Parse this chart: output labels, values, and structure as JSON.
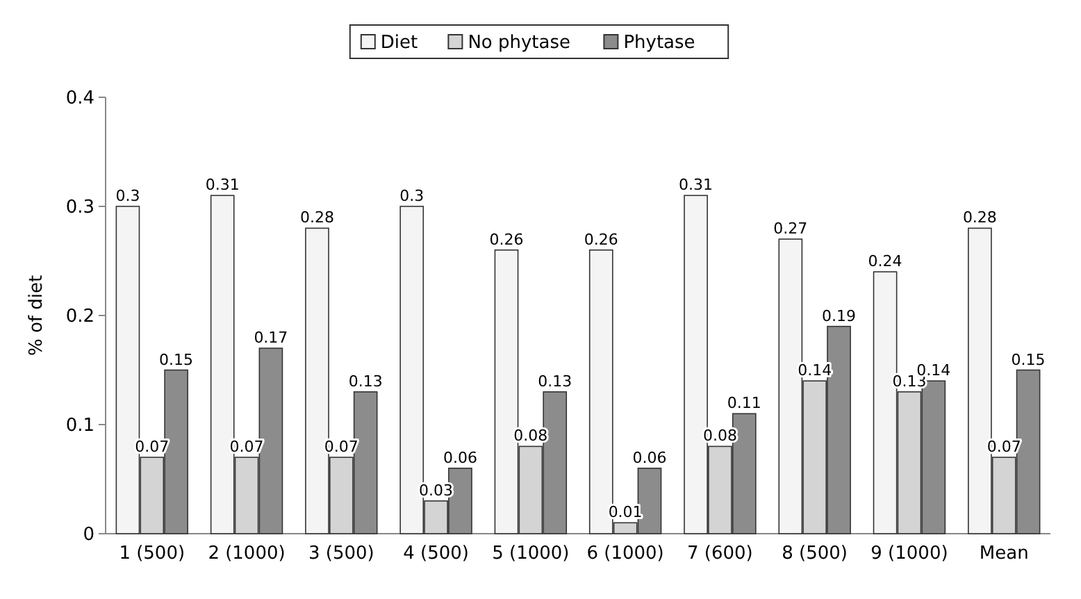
{
  "chart_data": {
    "type": "bar",
    "ylabel": "% of diet",
    "categories": [
      "1 (500)",
      "2 (1000)",
      "3 (500)",
      "4 (500)",
      "5 (1000)",
      "6 (1000)",
      "7 (600)",
      "8 (500)",
      "9 (1000)",
      "Mean"
    ],
    "series": [
      {
        "name": "Diet",
        "color": "#f4f4f4",
        "values": [
          0.3,
          0.31,
          0.28,
          0.3,
          0.26,
          0.26,
          0.31,
          0.27,
          0.24,
          0.28
        ]
      },
      {
        "name": "No phytase",
        "color": "#d4d4d4",
        "values": [
          0.07,
          0.07,
          0.07,
          0.03,
          0.08,
          0.01,
          0.08,
          0.14,
          0.13,
          0.07
        ]
      },
      {
        "name": "Phytase",
        "color": "#8c8c8c",
        "values": [
          0.15,
          0.17,
          0.13,
          0.06,
          0.13,
          0.06,
          0.11,
          0.19,
          0.14,
          0.15
        ]
      }
    ],
    "ylim": [
      0,
      0.4
    ],
    "yticks": [
      0,
      0.1,
      0.2,
      0.3,
      0.4
    ],
    "grid": false,
    "legend": "top",
    "data_labels": true
  }
}
